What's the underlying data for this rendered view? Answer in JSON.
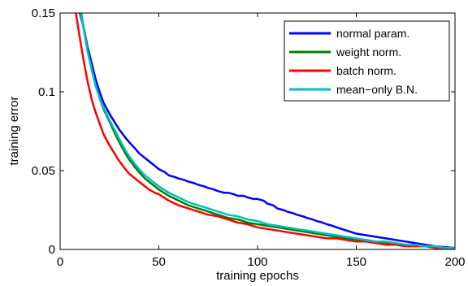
{
  "chart_data": {
    "type": "line",
    "title": "",
    "xlabel": "training epochs",
    "ylabel": "training error",
    "xlim": [
      0,
      200
    ],
    "ylim": [
      0,
      0.15
    ],
    "xticks": [
      0,
      50,
      100,
      150,
      200
    ],
    "xtick_labels": [
      "0",
      "50",
      "100",
      "150",
      "200"
    ],
    "yticks": [
      0,
      0.05,
      0.1,
      0.15
    ],
    "ytick_labels": [
      "0",
      "0.05",
      "0.1",
      "0.15"
    ],
    "grid": false,
    "legend_position": "top-right",
    "series": [
      {
        "name": "normal param.",
        "color": "#0000ff",
        "x": [
          9,
          10,
          12,
          14,
          16,
          18,
          20,
          22,
          25,
          28,
          30,
          33,
          35,
          38,
          40,
          43,
          45,
          48,
          50,
          53,
          55,
          58,
          60,
          63,
          65,
          68,
          70,
          73,
          75,
          78,
          80,
          83,
          85,
          88,
          90,
          93,
          95,
          98,
          100,
          103,
          105,
          108,
          110,
          113,
          115,
          118,
          120,
          123,
          125,
          128,
          130,
          133,
          135,
          138,
          140,
          145,
          150,
          155,
          160,
          165,
          170,
          175,
          180,
          185,
          190,
          195,
          200
        ],
        "y": [
          0.155,
          0.15,
          0.14,
          0.128,
          0.118,
          0.108,
          0.1,
          0.093,
          0.086,
          0.08,
          0.076,
          0.071,
          0.068,
          0.064,
          0.061,
          0.058,
          0.056,
          0.053,
          0.051,
          0.049,
          0.047,
          0.046,
          0.045,
          0.044,
          0.043,
          0.042,
          0.041,
          0.04,
          0.039,
          0.038,
          0.037,
          0.036,
          0.036,
          0.035,
          0.034,
          0.034,
          0.033,
          0.032,
          0.032,
          0.031,
          0.029,
          0.028,
          0.026,
          0.025,
          0.024,
          0.023,
          0.022,
          0.021,
          0.02,
          0.019,
          0.018,
          0.017,
          0.016,
          0.015,
          0.014,
          0.012,
          0.01,
          0.009,
          0.008,
          0.007,
          0.006,
          0.005,
          0.004,
          0.003,
          0.002,
          0.0015,
          0.001
        ]
      },
      {
        "name": "weight norm.",
        "color": "#008000",
        "x": [
          10,
          12,
          14,
          16,
          18,
          20,
          22,
          25,
          28,
          30,
          33,
          35,
          38,
          40,
          43,
          45,
          48,
          50,
          55,
          60,
          65,
          70,
          75,
          80,
          85,
          90,
          95,
          100,
          105,
          110,
          115,
          120,
          125,
          130,
          135,
          140,
          145,
          150,
          155,
          160,
          165,
          170,
          175,
          180,
          185,
          190,
          195,
          200
        ],
        "y": [
          0.155,
          0.14,
          0.126,
          0.114,
          0.104,
          0.096,
          0.089,
          0.081,
          0.073,
          0.068,
          0.061,
          0.057,
          0.052,
          0.049,
          0.045,
          0.043,
          0.04,
          0.038,
          0.034,
          0.031,
          0.028,
          0.026,
          0.024,
          0.022,
          0.02,
          0.019,
          0.017,
          0.016,
          0.015,
          0.014,
          0.013,
          0.012,
          0.011,
          0.01,
          0.009,
          0.008,
          0.007,
          0.006,
          0.006,
          0.005,
          0.004,
          0.004,
          0.003,
          0.003,
          0.002,
          0.002,
          0.001,
          0.001
        ]
      },
      {
        "name": "batch norm.",
        "color": "#ff0000",
        "x": [
          8,
          10,
          12,
          14,
          16,
          18,
          20,
          22,
          25,
          28,
          30,
          33,
          35,
          38,
          40,
          43,
          45,
          48,
          50,
          55,
          60,
          65,
          70,
          75,
          80,
          85,
          90,
          95,
          100,
          105,
          110,
          115,
          120,
          125,
          130,
          135,
          140,
          145,
          150,
          155,
          160,
          165,
          170,
          175,
          180,
          185,
          190,
          195,
          200
        ],
        "y": [
          0.15,
          0.134,
          0.119,
          0.106,
          0.095,
          0.087,
          0.08,
          0.073,
          0.066,
          0.06,
          0.056,
          0.051,
          0.048,
          0.045,
          0.043,
          0.04,
          0.038,
          0.036,
          0.035,
          0.031,
          0.028,
          0.026,
          0.024,
          0.022,
          0.021,
          0.019,
          0.017,
          0.016,
          0.014,
          0.013,
          0.012,
          0.011,
          0.01,
          0.009,
          0.008,
          0.007,
          0.007,
          0.006,
          0.005,
          0.005,
          0.004,
          0.003,
          0.003,
          0.002,
          0.002,
          0.002,
          0.001,
          0.001,
          0.001
        ]
      },
      {
        "name": "mean−only B.N.",
        "color": "#00bfbf",
        "x": [
          10,
          12,
          14,
          16,
          18,
          20,
          22,
          25,
          28,
          30,
          33,
          35,
          38,
          40,
          43,
          45,
          48,
          50,
          55,
          60,
          65,
          70,
          75,
          80,
          85,
          90,
          95,
          100,
          105,
          110,
          115,
          120,
          125,
          130,
          135,
          140,
          145,
          150,
          155,
          160,
          165,
          170,
          175,
          180,
          185,
          190,
          195,
          200
        ],
        "y": [
          0.153,
          0.139,
          0.125,
          0.114,
          0.104,
          0.096,
          0.09,
          0.082,
          0.075,
          0.07,
          0.063,
          0.059,
          0.054,
          0.051,
          0.047,
          0.045,
          0.042,
          0.04,
          0.036,
          0.033,
          0.03,
          0.028,
          0.026,
          0.024,
          0.022,
          0.021,
          0.019,
          0.018,
          0.016,
          0.015,
          0.014,
          0.013,
          0.012,
          0.011,
          0.01,
          0.009,
          0.008,
          0.007,
          0.006,
          0.005,
          0.005,
          0.004,
          0.003,
          0.003,
          0.002,
          0.002,
          0.001,
          0.001
        ]
      }
    ]
  }
}
